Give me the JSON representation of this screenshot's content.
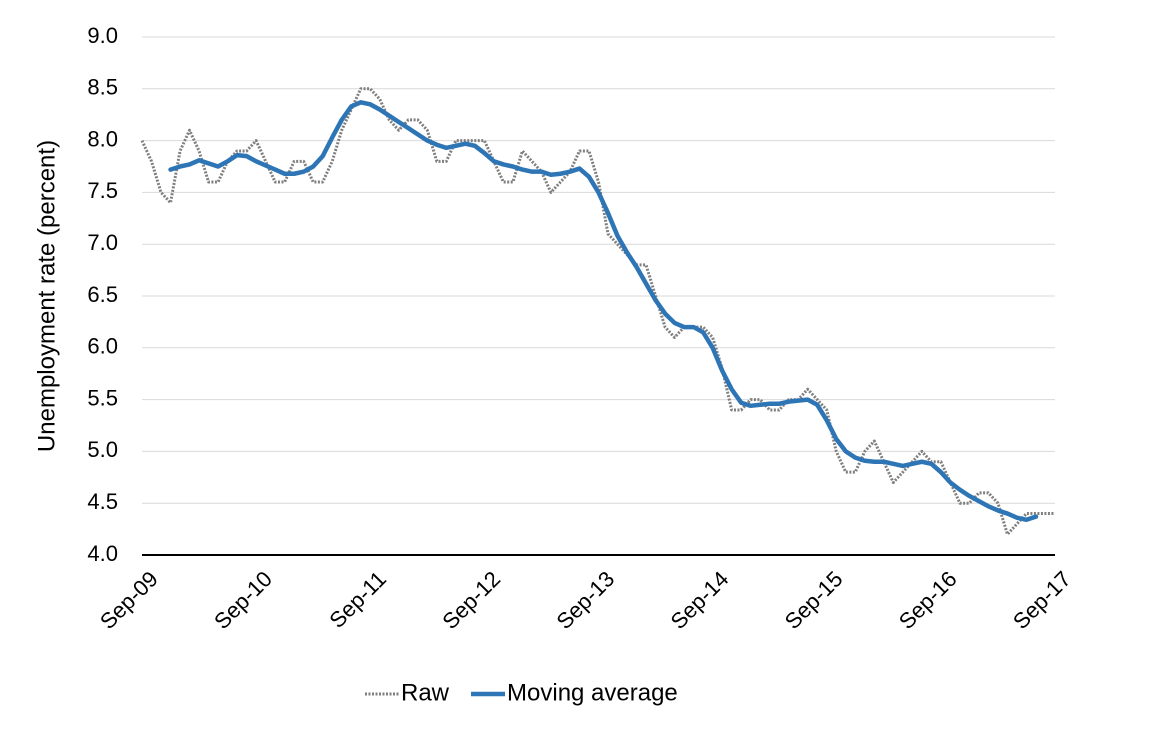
{
  "chart_data": {
    "type": "line",
    "y_label": "Unemployment rate (percent)",
    "categories": [
      "Sep-09",
      null,
      null,
      null,
      null,
      null,
      null,
      null,
      null,
      null,
      null,
      null,
      "Sep-10",
      null,
      null,
      null,
      null,
      null,
      null,
      null,
      null,
      null,
      null,
      null,
      "Sep-11",
      null,
      null,
      null,
      null,
      null,
      null,
      null,
      null,
      null,
      null,
      null,
      "Sep-12",
      null,
      null,
      null,
      null,
      null,
      null,
      null,
      null,
      null,
      null,
      null,
      "Sep-13",
      null,
      null,
      null,
      null,
      null,
      null,
      null,
      null,
      null,
      null,
      null,
      "Sep-14",
      null,
      null,
      null,
      null,
      null,
      null,
      null,
      null,
      null,
      null,
      null,
      "Sep-15",
      null,
      null,
      null,
      null,
      null,
      null,
      null,
      null,
      null,
      null,
      null,
      "Sep-16",
      null,
      null,
      null,
      null,
      null,
      null,
      null,
      null,
      null,
      null,
      null,
      "Sep-17"
    ],
    "series": [
      {
        "name": "Raw",
        "color": "#7f7f7f",
        "dashed": true,
        "values": [
          8.0,
          7.8,
          7.5,
          7.4,
          7.9,
          8.1,
          7.9,
          7.6,
          7.6,
          7.8,
          7.9,
          7.9,
          8.0,
          7.8,
          7.6,
          7.6,
          7.8,
          7.8,
          7.6,
          7.6,
          7.8,
          8.1,
          8.3,
          8.5,
          8.5,
          8.4,
          8.2,
          8.1,
          8.2,
          8.2,
          8.1,
          7.8,
          7.8,
          8.0,
          8.0,
          8.0,
          8.0,
          7.8,
          7.6,
          7.6,
          7.9,
          7.8,
          7.7,
          7.5,
          7.6,
          7.7,
          7.9,
          7.9,
          7.6,
          7.1,
          7.0,
          6.9,
          6.8,
          6.8,
          6.5,
          6.2,
          6.1,
          6.2,
          6.2,
          6.2,
          6.1,
          5.8,
          5.4,
          5.4,
          5.5,
          5.5,
          5.4,
          5.4,
          5.5,
          5.5,
          5.6,
          5.5,
          5.4,
          5.0,
          4.8,
          4.8,
          5.0,
          5.1,
          4.9,
          4.7,
          4.8,
          4.9,
          5.0,
          4.9,
          4.9,
          4.7,
          4.5,
          4.5,
          4.6,
          4.6,
          4.5,
          4.2,
          4.3,
          4.4,
          4.4,
          4.4,
          4.4
        ]
      },
      {
        "name": "Moving average",
        "color": "#2e75b6",
        "dashed": false,
        "values": [
          null,
          null,
          null,
          7.72,
          7.75,
          7.77,
          7.81,
          7.78,
          7.75,
          7.8,
          7.86,
          7.85,
          7.8,
          7.76,
          7.72,
          7.68,
          7.68,
          7.7,
          7.75,
          7.85,
          8.03,
          8.2,
          8.33,
          8.37,
          8.35,
          8.3,
          8.24,
          8.18,
          8.12,
          8.06,
          8.0,
          7.96,
          7.93,
          7.95,
          7.97,
          7.95,
          7.88,
          7.8,
          7.77,
          7.75,
          7.72,
          7.7,
          7.7,
          7.67,
          7.68,
          7.7,
          7.73,
          7.65,
          7.5,
          7.3,
          7.08,
          6.92,
          6.78,
          6.62,
          6.46,
          6.33,
          6.24,
          6.2,
          6.2,
          6.15,
          6.0,
          5.78,
          5.6,
          5.47,
          5.44,
          5.45,
          5.46,
          5.46,
          5.48,
          5.49,
          5.5,
          5.45,
          5.3,
          5.12,
          5.0,
          4.94,
          4.91,
          4.9,
          4.9,
          4.88,
          4.86,
          4.88,
          4.9,
          4.88,
          4.8,
          4.7,
          4.63,
          4.57,
          4.52,
          4.47,
          4.43,
          4.4,
          4.36,
          4.34,
          4.37,
          null,
          null
        ]
      }
    ],
    "ylim": [
      4,
      9
    ],
    "yticks": [
      {
        "value": 4,
        "label": "4.0"
      },
      4.5,
      {
        "value": 5,
        "label": "5.0"
      },
      5.5,
      {
        "value": 6,
        "label": "6.0"
      },
      6.5,
      {
        "value": 7,
        "label": "7.0"
      },
      7.5,
      {
        "value": 8,
        "label": "8.0"
      },
      8.5,
      {
        "value": 9,
        "label": "9.0"
      }
    ],
    "grid": true,
    "legend": "bottom"
  }
}
